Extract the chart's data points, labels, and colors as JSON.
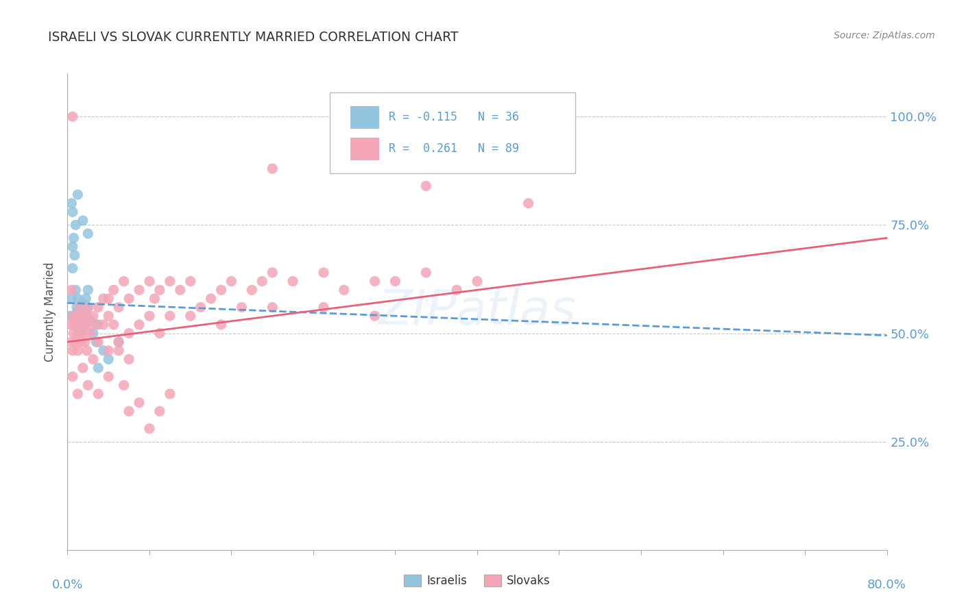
{
  "title": "ISRAELI VS SLOVAK CURRENTLY MARRIED CORRELATION CHART",
  "source": "Source: ZipAtlas.com",
  "ylabel": "Currently Married",
  "xmin": 0.0,
  "xmax": 80.0,
  "ymin": 0.0,
  "ymax": 110.0,
  "ytick_positions": [
    25.0,
    50.0,
    75.0,
    100.0
  ],
  "ytick_labels": [
    "25.0%",
    "50.0%",
    "75.0%",
    "100.0%"
  ],
  "legend_r_israeli": "R = -0.115",
  "legend_n_israeli": "N = 36",
  "legend_r_slovak": "R =  0.261",
  "legend_n_slovak": "N = 89",
  "israeli_color": "#92C5DE",
  "slovak_color": "#F4A6B8",
  "israeli_line_color": "#5B9BD5",
  "slovak_line_color": "#E8607A",
  "watermark_text": "ZIPatlas",
  "israeli_line_x": [
    0,
    80
  ],
  "israeli_line_y": [
    57.0,
    49.5
  ],
  "slovak_line_x": [
    0,
    80
  ],
  "slovak_line_y": [
    48.0,
    72.0
  ],
  "israeli_points": [
    [
      0.3,
      54
    ],
    [
      0.4,
      58
    ],
    [
      0.5,
      65
    ],
    [
      0.5,
      70
    ],
    [
      0.6,
      72
    ],
    [
      0.7,
      68
    ],
    [
      0.8,
      75
    ],
    [
      0.8,
      60
    ],
    [
      0.9,
      56
    ],
    [
      1.0,
      55
    ],
    [
      1.0,
      58
    ],
    [
      1.1,
      52
    ],
    [
      1.2,
      54
    ],
    [
      1.3,
      50
    ],
    [
      1.4,
      56
    ],
    [
      1.5,
      53
    ],
    [
      1.5,
      57
    ],
    [
      1.6,
      55
    ],
    [
      1.7,
      52
    ],
    [
      1.8,
      58
    ],
    [
      1.9,
      54
    ],
    [
      2.0,
      56
    ],
    [
      2.0,
      60
    ],
    [
      2.2,
      53
    ],
    [
      2.5,
      50
    ],
    [
      2.8,
      48
    ],
    [
      3.0,
      52
    ],
    [
      3.5,
      46
    ],
    [
      4.0,
      44
    ],
    [
      5.0,
      48
    ],
    [
      0.4,
      80
    ],
    [
      0.5,
      78
    ],
    [
      1.0,
      82
    ],
    [
      1.5,
      76
    ],
    [
      2.0,
      73
    ],
    [
      3.0,
      42
    ]
  ],
  "slovak_points": [
    [
      0.3,
      52
    ],
    [
      0.4,
      48
    ],
    [
      0.5,
      54
    ],
    [
      0.5,
      46
    ],
    [
      0.6,
      50
    ],
    [
      0.7,
      52
    ],
    [
      0.8,
      48
    ],
    [
      0.9,
      54
    ],
    [
      1.0,
      50
    ],
    [
      1.0,
      46
    ],
    [
      1.1,
      52
    ],
    [
      1.2,
      56
    ],
    [
      1.3,
      48
    ],
    [
      1.4,
      54
    ],
    [
      1.5,
      50
    ],
    [
      1.6,
      52
    ],
    [
      1.7,
      48
    ],
    [
      1.8,
      54
    ],
    [
      1.9,
      46
    ],
    [
      2.0,
      52
    ],
    [
      2.0,
      56
    ],
    [
      2.2,
      50
    ],
    [
      2.5,
      54
    ],
    [
      2.8,
      52
    ],
    [
      3.0,
      56
    ],
    [
      3.0,
      48
    ],
    [
      3.5,
      58
    ],
    [
      3.5,
      52
    ],
    [
      4.0,
      54
    ],
    [
      4.0,
      46
    ],
    [
      4.5,
      60
    ],
    [
      4.5,
      52
    ],
    [
      5.0,
      56
    ],
    [
      5.0,
      48
    ],
    [
      5.5,
      62
    ],
    [
      6.0,
      58
    ],
    [
      6.0,
      50
    ],
    [
      6.0,
      44
    ],
    [
      7.0,
      60
    ],
    [
      7.0,
      52
    ],
    [
      8.0,
      62
    ],
    [
      8.0,
      54
    ],
    [
      8.5,
      58
    ],
    [
      9.0,
      60
    ],
    [
      9.0,
      50
    ],
    [
      10.0,
      62
    ],
    [
      10.0,
      54
    ],
    [
      11.0,
      60
    ],
    [
      12.0,
      62
    ],
    [
      12.0,
      54
    ],
    [
      13.0,
      56
    ],
    [
      14.0,
      58
    ],
    [
      15.0,
      60
    ],
    [
      15.0,
      52
    ],
    [
      16.0,
      62
    ],
    [
      17.0,
      56
    ],
    [
      18.0,
      60
    ],
    [
      19.0,
      62
    ],
    [
      20.0,
      64
    ],
    [
      20.0,
      56
    ],
    [
      22.0,
      62
    ],
    [
      25.0,
      64
    ],
    [
      25.0,
      56
    ],
    [
      27.0,
      60
    ],
    [
      30.0,
      62
    ],
    [
      30.0,
      54
    ],
    [
      32.0,
      62
    ],
    [
      35.0,
      64
    ],
    [
      38.0,
      60
    ],
    [
      40.0,
      62
    ],
    [
      0.5,
      40
    ],
    [
      1.0,
      36
    ],
    [
      1.5,
      42
    ],
    [
      2.0,
      38
    ],
    [
      2.5,
      44
    ],
    [
      3.0,
      36
    ],
    [
      4.0,
      40
    ],
    [
      5.0,
      46
    ],
    [
      5.5,
      38
    ],
    [
      6.0,
      32
    ],
    [
      7.0,
      34
    ],
    [
      8.0,
      28
    ],
    [
      9.0,
      32
    ],
    [
      10.0,
      36
    ],
    [
      4.0,
      58
    ],
    [
      0.4,
      60
    ],
    [
      0.5,
      100
    ],
    [
      20.0,
      88
    ],
    [
      35.0,
      84
    ],
    [
      45.0,
      80
    ]
  ]
}
